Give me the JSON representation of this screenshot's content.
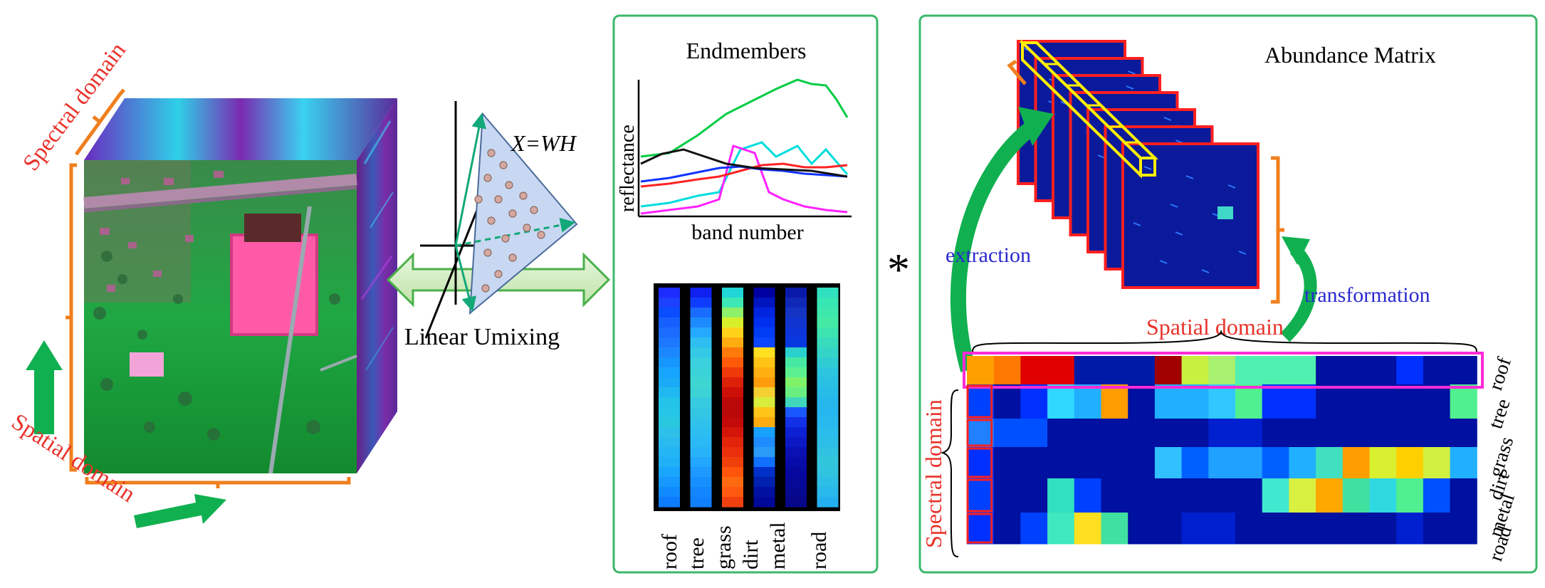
{
  "colors": {
    "orange": "#f07f1e",
    "red_text": "#e8322b",
    "blue_text": "#2a2ad0",
    "green_arrow": "#10b050",
    "panel_border": "#3bb86a",
    "magenta": "#ff2bd6",
    "yellow": "#ffee00",
    "cube_top": "#7a3aa8",
    "cube_side": "#5b2f8f"
  },
  "cube": {
    "spectral_label": "Spectral domain",
    "spatial_label": "Spatial domain"
  },
  "unmixing": {
    "equation": "X=WH",
    "label": "Linear Umixing"
  },
  "endmembers": {
    "title": "Endmembers",
    "ylabel": "reflectance",
    "xlabel": "band number",
    "material_labels": [
      "roof",
      "tree",
      "grass",
      "dirt",
      "metal",
      "road"
    ],
    "curve_colors": [
      "#00cc44",
      "#00dddd",
      "#ff22ff",
      "#ff2222",
      "#1133ff",
      "#111111"
    ],
    "heat_columns": [
      [
        "#1e2bff",
        "#1e40ff",
        "#0a4dff",
        "#1560ff",
        "#1c6cff",
        "#1d78ff",
        "#1c88ff",
        "#1696ff",
        "#16a4ff",
        "#1aaaf8",
        "#20b8f0",
        "#23c3ea",
        "#25c6e8",
        "#2ac8e0",
        "#2ec0e8",
        "#2abaf0",
        "#24b5f4",
        "#1fb0f8",
        "#1aa5ff",
        "#1598ff",
        "#108aff",
        "#0e7cff"
      ],
      [
        "#1020f0",
        "#0f3dff",
        "#1a6bff",
        "#1d8aff",
        "#25a9ff",
        "#2ebef2",
        "#34c9e6",
        "#3ad0dd",
        "#3ad4d8",
        "#3ed6d2",
        "#3cd2d6",
        "#36cbe0",
        "#34c7e4",
        "#30c2ea",
        "#2cbef0",
        "#2ab9f4",
        "#28b2f8",
        "#22a7ff",
        "#1d99ff",
        "#1790ff",
        "#1386ff",
        "#1180ff"
      ],
      [
        "#20d6d6",
        "#3ee8b4",
        "#8ff06a",
        "#d8f02c",
        "#ffd21a",
        "#ffac10",
        "#ff7a0a",
        "#ff5a08",
        "#ee3a08",
        "#dd2008",
        "#cc1008",
        "#bb0808",
        "#b80808",
        "#c40a08",
        "#d4160a",
        "#e2240a",
        "#ea300a",
        "#f0400a",
        "#ff540c",
        "#ff6a10",
        "#ff5a10",
        "#f04010"
      ],
      [
        "#0000a0",
        "#0014c0",
        "#0024e0",
        "#0030ee",
        "#003cf4",
        "#0a46ff",
        "#ffe020",
        "#ffc414",
        "#ffb010",
        "#ff9c0c",
        "#f4d030",
        "#d8ec3c",
        "#ffc418",
        "#ffac10",
        "#18a0ff",
        "#1e8cff",
        "#2a9cf8",
        "#1070ff",
        "#0030c8",
        "#0020b0",
        "#0010a0",
        "#000898"
      ],
      [
        "#0a18a8",
        "#1028b8",
        "#1434c4",
        "#1034d0",
        "#0c34d8",
        "#0838e0",
        "#2ad0cc",
        "#46e8a4",
        "#5cf090",
        "#80f26a",
        "#6aee80",
        "#40d8bc",
        "#1a58ff",
        "#1230e8",
        "#0e20d4",
        "#0c18c4",
        "#0a10b4",
        "#080ca8",
        "#0608a0",
        "#060898",
        "#060890",
        "#060888"
      ],
      [
        "#30e0c0",
        "#38e6b4",
        "#3ee8ac",
        "#44eaa4",
        "#3ee4b0",
        "#38dcbc",
        "#34d4c8",
        "#30ccd4",
        "#2cc4de",
        "#2ac0e4",
        "#28bce8",
        "#26b8ec",
        "#26b6f0",
        "#28b8ee",
        "#2abcea",
        "#2cbee6",
        "#30c2e0",
        "#32c6dc",
        "#30c4de",
        "#2cbee4",
        "#28b8ea",
        "#24b0f0"
      ]
    ]
  },
  "operator": "*",
  "abundance": {
    "title": "Abundance Matrix",
    "extraction_label": "extraction",
    "transformation_label": "transformation",
    "spatial_label": "Spatial domain",
    "spectral_label": "Spectral domain",
    "row_labels": [
      "roof",
      "tree",
      "grass",
      "dirt",
      "metal",
      "road"
    ],
    "matrix_colors": [
      [
        "#ffa000",
        "#ff7800",
        "#e00000",
        "#e00000",
        "#001aa8",
        "#001aa8",
        "#001aa8",
        "#a00000",
        "#c8f040",
        "#a8f070",
        "#50f0b0",
        "#50f0b0",
        "#50f0b0",
        "#0010a0",
        "#0010a0",
        "#0010a0",
        "#0030ff",
        "#0010a0",
        "#0010a0"
      ],
      [
        "#0040ff",
        "#0010a0",
        "#0030ff",
        "#30d8ff",
        "#20b0ff",
        "#ff9c00",
        "#0010a0",
        "#20b0ff",
        "#20b0ff",
        "#30c8ff",
        "#50f090",
        "#0030ff",
        "#0030ff",
        "#0010a0",
        "#0010a0",
        "#0010a0",
        "#0010a0",
        "#0010a0",
        "#50f090"
      ],
      [
        "#2080ff",
        "#0050ff",
        "#0050ff",
        "#0010a0",
        "#0010a0",
        "#0010a0",
        "#0010a0",
        "#0010a0",
        "#0010a0",
        "#0020d0",
        "#0020d0",
        "#0010a0",
        "#0010a0",
        "#0010a0",
        "#0010a0",
        "#0010a0",
        "#0010a0",
        "#0010a0",
        "#0010a0"
      ],
      [
        "#0030ff",
        "#0010a0",
        "#0010a0",
        "#0010a0",
        "#0010a0",
        "#0010a0",
        "#0010a0",
        "#30c0ff",
        "#0060ff",
        "#20a0ff",
        "#20a0ff",
        "#0060ff",
        "#20b0ff",
        "#40e0c0",
        "#ff9c00",
        "#d8f030",
        "#ffd000",
        "#d0f040",
        "#20b0ff"
      ],
      [
        "#0040ff",
        "#0010a0",
        "#0010a0",
        "#30e0c0",
        "#0040ff",
        "#0010a0",
        "#0010a0",
        "#0010a0",
        "#0010a0",
        "#0010a0",
        "#0010a0",
        "#40e8d0",
        "#d8f040",
        "#ffa800",
        "#40e0a0",
        "#30d8e0",
        "#50f090",
        "#0050ff",
        "#0010a0"
      ],
      [
        "#0030ff",
        "#0010a0",
        "#0040ff",
        "#40e8c0",
        "#ffe020",
        "#40e0a0",
        "#0010a0",
        "#0010a0",
        "#0020d0",
        "#0020d0",
        "#0010a0",
        "#0010a0",
        "#0010a0",
        "#0010a0",
        "#0010a0",
        "#0010a0",
        "#0020d0",
        "#0010a0",
        "#0010a0"
      ]
    ]
  }
}
